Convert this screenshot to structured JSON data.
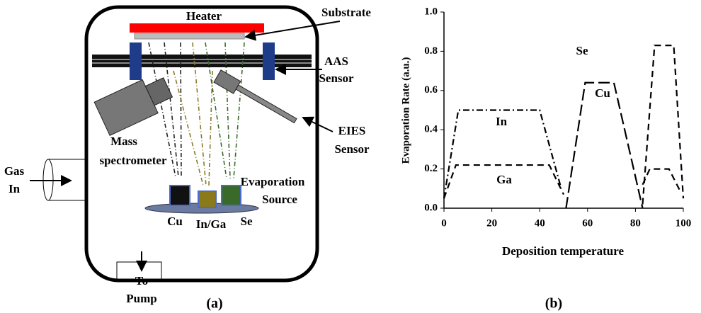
{
  "diagram": {
    "heater": "Heater",
    "substrate": "Substrate",
    "aas_sensor": [
      "AAS",
      "Sensor"
    ],
    "mass_spectrometer": [
      "Mass",
      "spectrometer"
    ],
    "eies_sensor": [
      "EIES",
      "Sensor"
    ],
    "evaporation_source": [
      "Evaporation",
      "Source"
    ],
    "sources": [
      "Cu",
      "In/Ga",
      "Se"
    ],
    "gas_in": [
      "Gas",
      "In"
    ],
    "to_pump": [
      "To",
      "Pump"
    ],
    "caption": "(a)"
  },
  "chart_data": {
    "type": "line",
    "caption": "(b)",
    "x_label": "Deposition temperature",
    "y_label": "Evaporation Rate (a.u.)",
    "xlim": [
      0,
      100
    ],
    "xticks": [
      0,
      20,
      40,
      60,
      80,
      100
    ],
    "ylim": [
      0,
      1
    ],
    "yticks": [
      {
        "value": 0,
        "label": "0.0"
      },
      0.2,
      0.4,
      0.6,
      0.8,
      {
        "value": 1,
        "label": "1.0"
      }
    ],
    "series": [
      {
        "name": "In",
        "color": "#000000",
        "dash": "dash-dot",
        "x": [
          0,
          6,
          40,
          49
        ],
        "values": [
          0.05,
          0.5,
          0.5,
          0.1
        ]
      },
      {
        "name": "Ga",
        "color": "#000000",
        "dash": "dash",
        "x": [
          0,
          5,
          44,
          50,
          null,
          83,
          86,
          94,
          99
        ],
        "values": [
          0.05,
          0.22,
          0.22,
          0.07,
          null,
          0.12,
          0.2,
          0.2,
          0.08
        ]
      },
      {
        "name": "Cu",
        "color": "#000000",
        "dash": "long-dash",
        "x": [
          51,
          59,
          71,
          83
        ],
        "values": [
          0,
          0.64,
          0.64,
          0
        ]
      },
      {
        "name": "Se",
        "color": "#000000",
        "dash": "dash",
        "x": [
          83,
          88,
          96,
          100
        ],
        "values": [
          0.02,
          0.83,
          0.83,
          0.05
        ]
      }
    ],
    "grid": false
  }
}
